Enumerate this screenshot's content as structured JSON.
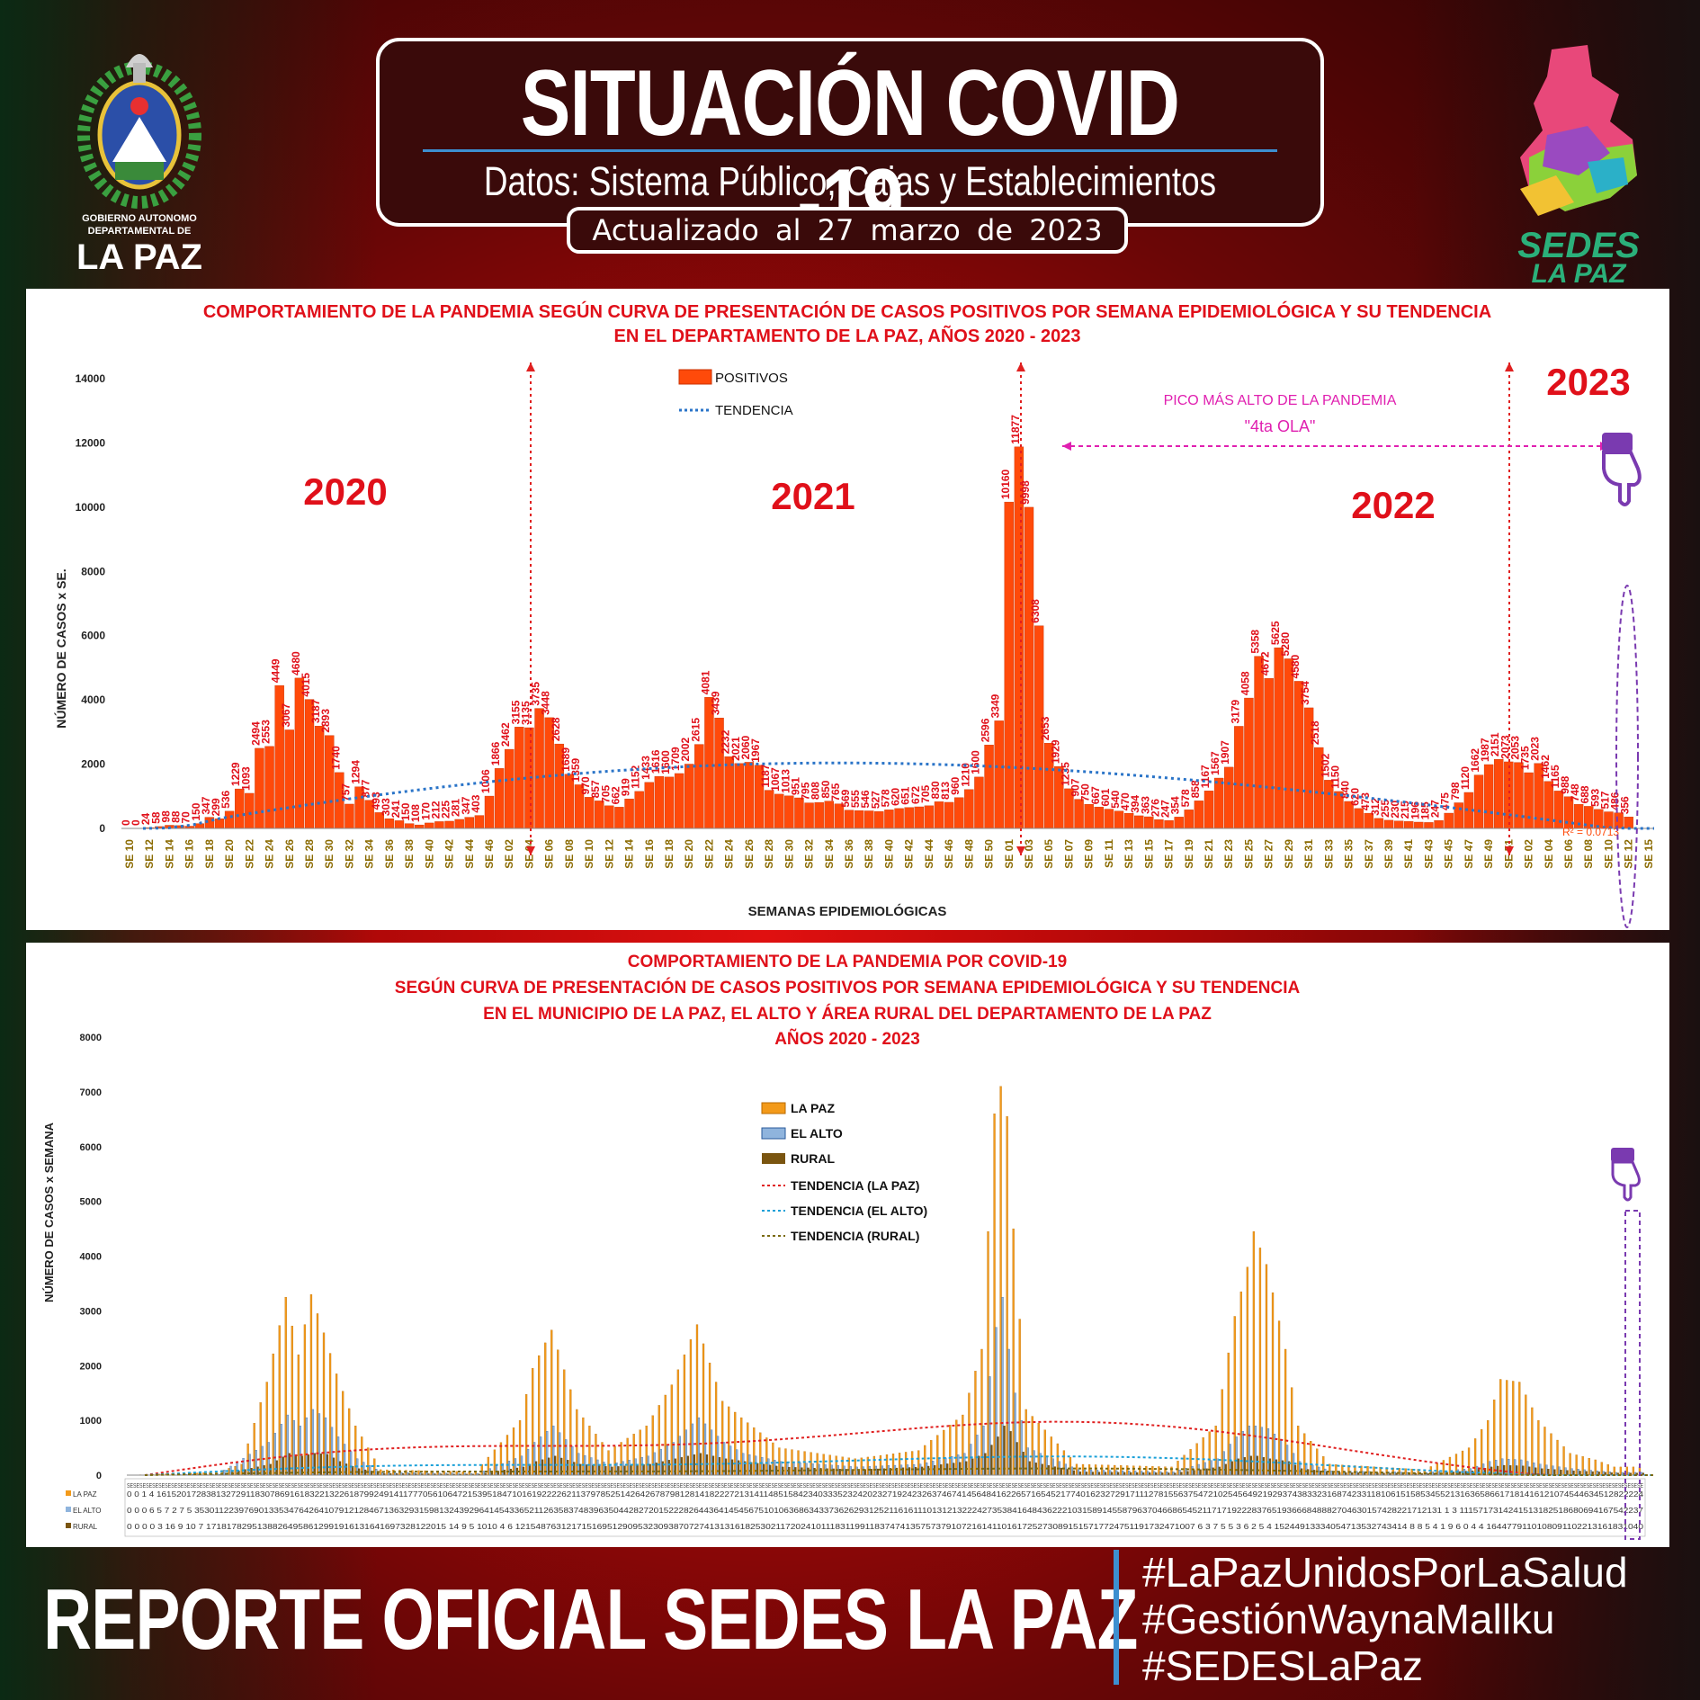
{
  "header": {
    "title": "SITUACIÓN COVID -19",
    "subtitle": "Datos: Sistema Público, Cajas y Establecimientos Privados",
    "updated": "Actualizado al 27 marzo de 2023"
  },
  "logos": {
    "left_text_1": "GOBIERNO AUTONOMO",
    "left_text_2": "DEPARTAMENTAL DE",
    "left_text_3": "LA PAZ",
    "right_text_1": "SEDES",
    "right_text_2": "LA PAZ"
  },
  "footer": {
    "title": "REPORTE OFICIAL SEDES LA PAZ",
    "hashtags": [
      "#LaPazUnidosPorLaSalud",
      "#GestiónWaynaMallku",
      "#SEDESLaPaz"
    ]
  },
  "colors": {
    "bar": "#ff4a0a",
    "trend": "#2a74c8",
    "title_red": "#e0101a",
    "lapaz": "#f39a1a",
    "elalto": "#8fb4dd",
    "rural": "#7a5510"
  },
  "chart_data": [
    {
      "type": "bar",
      "title_line1": "COMPORTAMIENTO DE LA PANDEMIA SEGÚN CURVA DE PRESENTACIÓN DE CASOS POSITIVOS POR SEMANA EPIDEMIOLÓGICA Y SU TENDENCIA",
      "title_line2": "EN EL DEPARTAMENTO DE LA PAZ, AÑOS 2020 - 2023",
      "ylabel": "NÚMERO DE CASOS x SE.",
      "xlabel": "SEMANAS EPIDEMIOLÓGICAS",
      "ylim": [
        0,
        14000
      ],
      "yticks": [
        "0",
        "2000",
        "4000",
        "6000",
        "8000",
        "10000",
        "12000",
        "14000"
      ],
      "legend": [
        "POSITIVOS",
        "TENDENCIA"
      ],
      "year_labels": [
        "2020",
        "2021",
        "2022",
        "2023"
      ],
      "annotation_line1": "PICO MÁS ALTO DE LA PANDEMIA",
      "annotation_line2": "\"4ta OLA\"",
      "segments": [
        {
          "year": "2020",
          "start_week": 10,
          "values": [
            0,
            0,
            24,
            58,
            98,
            88,
            70,
            150,
            347,
            299,
            536,
            1229,
            1093,
            2494,
            2553,
            4449,
            3067,
            4680,
            4015,
            3187,
            2893,
            1740,
            757,
            1294,
            877,
            493,
            303,
            241,
            150,
            108,
            170,
            212,
            225,
            281,
            347,
            403,
            1006
          ]
        },
        {
          "year": "2021",
          "start_week": 1,
          "values": [
            1866,
            2462,
            3155,
            3135,
            3735,
            3448,
            2628,
            1689,
            1359,
            970,
            857,
            705,
            662,
            919,
            1152,
            1433,
            1616,
            1600,
            1709,
            2002,
            2615,
            4081,
            3439,
            2232,
            2021,
            2060,
            1967,
            1187,
            1067,
            1013,
            951,
            795,
            808,
            850,
            765,
            569,
            555,
            546,
            527,
            578,
            620,
            651,
            672,
            705,
            830,
            813,
            960,
            1210,
            1600,
            2596,
            3349
          ]
        },
        {
          "year": "2022",
          "start_week": 1,
          "values": [
            10160,
            11877,
            9998,
            6308,
            2653,
            1929,
            1235,
            907,
            750,
            667,
            601,
            540,
            470,
            394,
            363,
            276,
            247,
            354,
            578,
            858,
            1167,
            1567,
            1907,
            3179,
            4058,
            5358,
            4672,
            5625,
            5280,
            4580,
            3754,
            2518,
            1502,
            1150,
            840,
            620,
            473,
            312,
            255,
            230,
            215,
            196,
            185,
            247,
            475,
            798,
            1120,
            1662,
            1987,
            2151,
            2073
          ]
        },
        {
          "year": "2023",
          "start_week": 1,
          "values": [
            2053,
            1735,
            2023,
            1462,
            1165,
            988,
            748,
            688,
            593,
            517,
            486,
            356
          ]
        }
      ],
      "trend_peak_value": 2000,
      "trend_equation": "R² = 0.0713"
    },
    {
      "type": "bar",
      "title_line1": "COMPORTAMIENTO DE LA PANDEMIA POR COVID-19",
      "title_line2": "SEGÚN CURVA DE PRESENTACIÓN DE CASOS POSITIVOS POR SEMANA EPIDEMIOLÓGICA Y SU TENDENCIA",
      "title_line3": "EN EL  MUNICIPIO DE LA PAZ, EL ALTO Y ÁREA RURAL DEL DEPARTAMENTO DE LA PAZ",
      "title_line4": "AÑOS 2020 - 2023",
      "ylabel": "NÚMERO DE CASOS x SEMANA",
      "ylim": [
        0,
        8000
      ],
      "yticks": [
        "0",
        "1000",
        "2000",
        "3000",
        "4000",
        "5000",
        "6000",
        "7000",
        "8000"
      ],
      "series": [
        {
          "name": "LA PAZ",
          "peaks": [
            [
              0,
              0
            ],
            [
              14,
              50
            ],
            [
              18,
              200
            ],
            [
              22,
              1700
            ],
            [
              25,
              3250
            ],
            [
              27,
              2200
            ],
            [
              29,
              3300
            ],
            [
              31,
              2600
            ],
            [
              33,
              1850
            ],
            [
              36,
              900
            ],
            [
              40,
              100
            ],
            [
              55,
              60
            ],
            [
              62,
              1000
            ],
            [
              64,
              1950
            ],
            [
              67,
              2650
            ],
            [
              71,
              1200
            ],
            [
              76,
              450
            ],
            [
              82,
              900
            ],
            [
              86,
              1650
            ],
            [
              90,
              2750
            ],
            [
              94,
              1350
            ],
            [
              97,
              1050
            ],
            [
              103,
              500
            ],
            [
              115,
              300
            ],
            [
              125,
              450
            ],
            [
              132,
              1100
            ],
            [
              135,
              2300
            ],
            [
              137,
              6600
            ],
            [
              138,
              7100
            ],
            [
              139,
              6550
            ],
            [
              140,
              4500
            ],
            [
              142,
              1200
            ],
            [
              150,
              200
            ],
            [
              165,
              150
            ],
            [
              172,
              900
            ],
            [
              175,
              2900
            ],
            [
              177,
              3800
            ],
            [
              178,
              4450
            ],
            [
              180,
              3850
            ],
            [
              183,
              2300
            ],
            [
              185,
              900
            ],
            [
              190,
              200
            ],
            [
              205,
              100
            ],
            [
              212,
              500
            ],
            [
              215,
              1000
            ],
            [
              217,
              1750
            ],
            [
              220,
              1700
            ],
            [
              223,
              1000
            ],
            [
              228,
              400
            ],
            [
              232,
              280
            ],
            [
              235,
              150
            ]
          ]
        },
        {
          "name": "EL ALTO",
          "peaks": [
            [
              0,
              0
            ],
            [
              14,
              20
            ],
            [
              22,
              600
            ],
            [
              25,
              1100
            ],
            [
              27,
              900
            ],
            [
              29,
              1200
            ],
            [
              31,
              1050
            ],
            [
              33,
              700
            ],
            [
              36,
              300
            ],
            [
              40,
              50
            ],
            [
              55,
              30
            ],
            [
              62,
              350
            ],
            [
              64,
              600
            ],
            [
              67,
              900
            ],
            [
              71,
              400
            ],
            [
              76,
              200
            ],
            [
              82,
              350
            ],
            [
              86,
              600
            ],
            [
              90,
              1050
            ],
            [
              94,
              600
            ],
            [
              97,
              400
            ],
            [
              103,
              250
            ],
            [
              115,
              150
            ],
            [
              125,
              200
            ],
            [
              132,
              400
            ],
            [
              135,
              900
            ],
            [
              137,
              2700
            ],
            [
              138,
              3250
            ],
            [
              139,
              2300
            ],
            [
              140,
              1500
            ],
            [
              142,
              500
            ],
            [
              150,
              100
            ],
            [
              165,
              60
            ],
            [
              172,
              300
            ],
            [
              175,
              700
            ],
            [
              177,
              900
            ],
            [
              178,
              900
            ],
            [
              180,
              850
            ],
            [
              183,
              550
            ],
            [
              185,
              250
            ],
            [
              190,
              80
            ],
            [
              205,
              50
            ],
            [
              212,
              120
            ],
            [
              215,
              250
            ],
            [
              217,
              300
            ],
            [
              220,
              280
            ],
            [
              223,
              200
            ],
            [
              228,
              120
            ],
            [
              232,
              80
            ],
            [
              235,
              50
            ]
          ]
        },
        {
          "name": "RURAL",
          "peaks": [
            [
              0,
              0
            ],
            [
              14,
              10
            ],
            [
              22,
              200
            ],
            [
              25,
              400
            ],
            [
              27,
              350
            ],
            [
              29,
              400
            ],
            [
              31,
              380
            ],
            [
              33,
              250
            ],
            [
              36,
              120
            ],
            [
              40,
              30
            ],
            [
              55,
              20
            ],
            [
              62,
              150
            ],
            [
              64,
              250
            ],
            [
              67,
              350
            ],
            [
              71,
              200
            ],
            [
              76,
              150
            ],
            [
              82,
              200
            ],
            [
              86,
              300
            ],
            [
              90,
              400
            ],
            [
              94,
              300
            ],
            [
              97,
              250
            ],
            [
              103,
              150
            ],
            [
              115,
              100
            ],
            [
              125,
              150
            ],
            [
              132,
              250
            ],
            [
              135,
              400
            ],
            [
              137,
              700
            ],
            [
              138,
              900
            ],
            [
              139,
              800
            ],
            [
              140,
              600
            ],
            [
              142,
              250
            ],
            [
              150,
              60
            ],
            [
              165,
              40
            ],
            [
              172,
              150
            ],
            [
              175,
              300
            ],
            [
              177,
              350
            ],
            [
              178,
              350
            ],
            [
              180,
              300
            ],
            [
              183,
              250
            ],
            [
              185,
              120
            ],
            [
              190,
              50
            ],
            [
              205,
              30
            ],
            [
              212,
              80
            ],
            [
              215,
              150
            ],
            [
              217,
              180
            ],
            [
              220,
              170
            ],
            [
              223,
              120
            ],
            [
              228,
              80
            ],
            [
              232,
              60
            ],
            [
              235,
              40
            ]
          ]
        }
      ],
      "legend": [
        "LA PAZ",
        "EL ALTO",
        "RURAL",
        "TENDENCIA (LA PAZ)",
        "TENDENCIA (EL ALTO)",
        "TENDENCIA (RURAL)"
      ],
      "table_row_labels": [
        "LA PAZ",
        "EL ALTO",
        "RURAL"
      ],
      "table_rows": [
        "0 0 1 4 1615201728381327291183078691618322132261879924914117770561064721539518471016192222621137978525142642678798128141822272131411485158423403335232420232719242326374674145648416226571654521774016232729171112781556375472102545649219293743833231687423311810615158534552131636586617181416121074544634512822224",
        "0 0 0 6 5 7 2 7 5 3530112239769013353476426410791212846713632931598132439296414543365211263583748396350442827201522282644364145456751010636863433736262931252116161110131213222427353841648436222103158914558796370466865452117171922283765193666848882704630157428221712131 1 3 1115717314241513182518680694167542237",
        "0 0 0 0 3 16 9 10 7 17181782951388264958612991916131641697328122015 14 9 5 1010 4 6 12154876312171516951290953230938707274131316182530211720241011183119911837474135757379107216141101617252730891515717724751191732471007 6 3 7 5 5 3 6 2 5 4 15244913334054713532743414 8 8 5 4 1 9 6 0 4 4 1644779110108091102213161831040"
      ]
    }
  ]
}
